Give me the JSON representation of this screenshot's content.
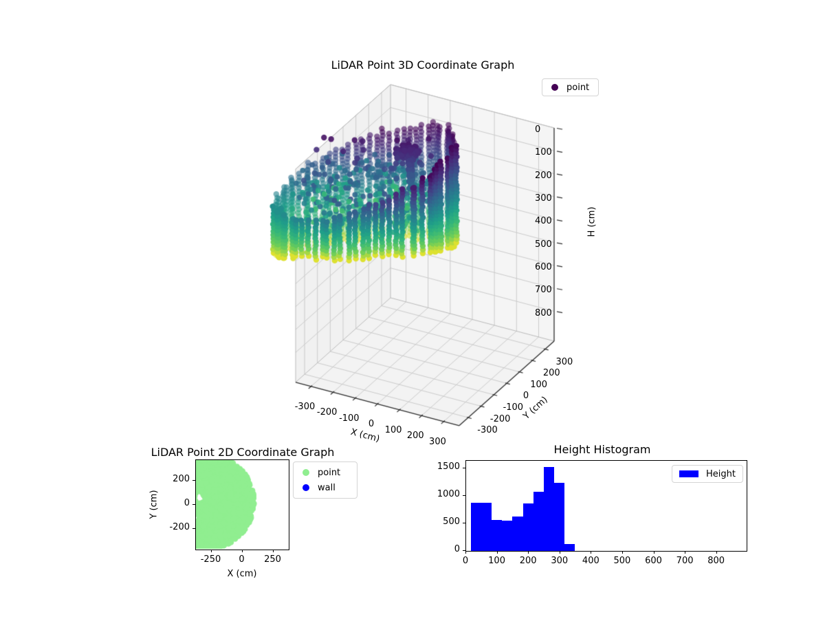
{
  "figure": {
    "background": "#ffffff"
  },
  "chart_data": [
    {
      "id": "scatter3d",
      "type": "scatter",
      "projection": "3d",
      "title": "LiDAR Point 3D Coordinate Graph",
      "xlabel": "X (cm)",
      "ylabel": "Y (cm)",
      "zlabel": "H (cm)",
      "xticks": [
        -300,
        -200,
        -100,
        0,
        100,
        200,
        300
      ],
      "yticks": [
        -300,
        -200,
        -100,
        0,
        100,
        200,
        300
      ],
      "zticks": [
        0,
        100,
        200,
        300,
        400,
        500,
        600,
        700,
        800
      ],
      "xlim": [
        -370,
        370
      ],
      "ylim": [
        -370,
        370
      ],
      "zlim": [
        0,
        930
      ],
      "z_axis_inverted": true,
      "grid": true,
      "colormap": "viridis",
      "color_by": "H (cm)",
      "h_range_cm": [
        15,
        347
      ],
      "structure": "circular wall ring (~300 cm radius) of vertical point columns colored dark purple (low H) to yellow (high H), scattered interior points, dense dark cluster near top center-right",
      "legend": [
        {
          "label": "point",
          "color": "#440154",
          "marker": "dot"
        }
      ],
      "legend_position": "upper right"
    },
    {
      "id": "scatter2d",
      "type": "scatter",
      "title": "LiDAR Point 2D Coordinate Graph",
      "xlabel": "X (cm)",
      "ylabel": "Y (cm)",
      "xticks": [
        -250,
        0,
        250
      ],
      "yticks": [
        -200,
        0,
        200
      ],
      "xlim": [
        -375,
        375
      ],
      "ylim": [
        -375,
        375
      ],
      "point_color": "#90ee90",
      "region": {
        "shape": "disc",
        "center_cm": [
          -303,
          20
        ],
        "radius_cm": 403,
        "holes_cm": [
          [
            -340,
            50,
            40
          ],
          [
            -375,
            -115,
            32
          ],
          [
            -328,
            300,
            13
          ],
          [
            -355,
            213,
            12
          ],
          [
            -370,
            -20,
            14
          ],
          [
            -330,
            -167,
            12
          ]
        ]
      },
      "legend": [
        {
          "label": "point",
          "color": "#90ee90",
          "marker": "dot"
        },
        {
          "label": "wall",
          "color": "#0000ff",
          "marker": "dot"
        }
      ],
      "legend_position": "outside upper right"
    },
    {
      "id": "histogram",
      "type": "bar",
      "title": "Height Histogram",
      "xlabel": "",
      "ylabel": "",
      "bin_edges": [
        15,
        48.2,
        81.4,
        114.6,
        147.8,
        181,
        214.2,
        247.4,
        280.6,
        313.8,
        347
      ],
      "counts": [
        880,
        880,
        565,
        550,
        620,
        865,
        1080,
        1530,
        1240,
        130
      ],
      "bar_color": "#0000ff",
      "xticks": [
        0,
        100,
        200,
        300,
        400,
        500,
        600,
        700,
        800
      ],
      "yticks": [
        0,
        500,
        1000,
        1500
      ],
      "xlim": [
        0,
        895
      ],
      "ylim": [
        0,
        1640
      ],
      "legend": [
        {
          "label": "Height",
          "color": "#0000ff",
          "marker": "rect"
        }
      ],
      "legend_position": "upper right"
    }
  ]
}
